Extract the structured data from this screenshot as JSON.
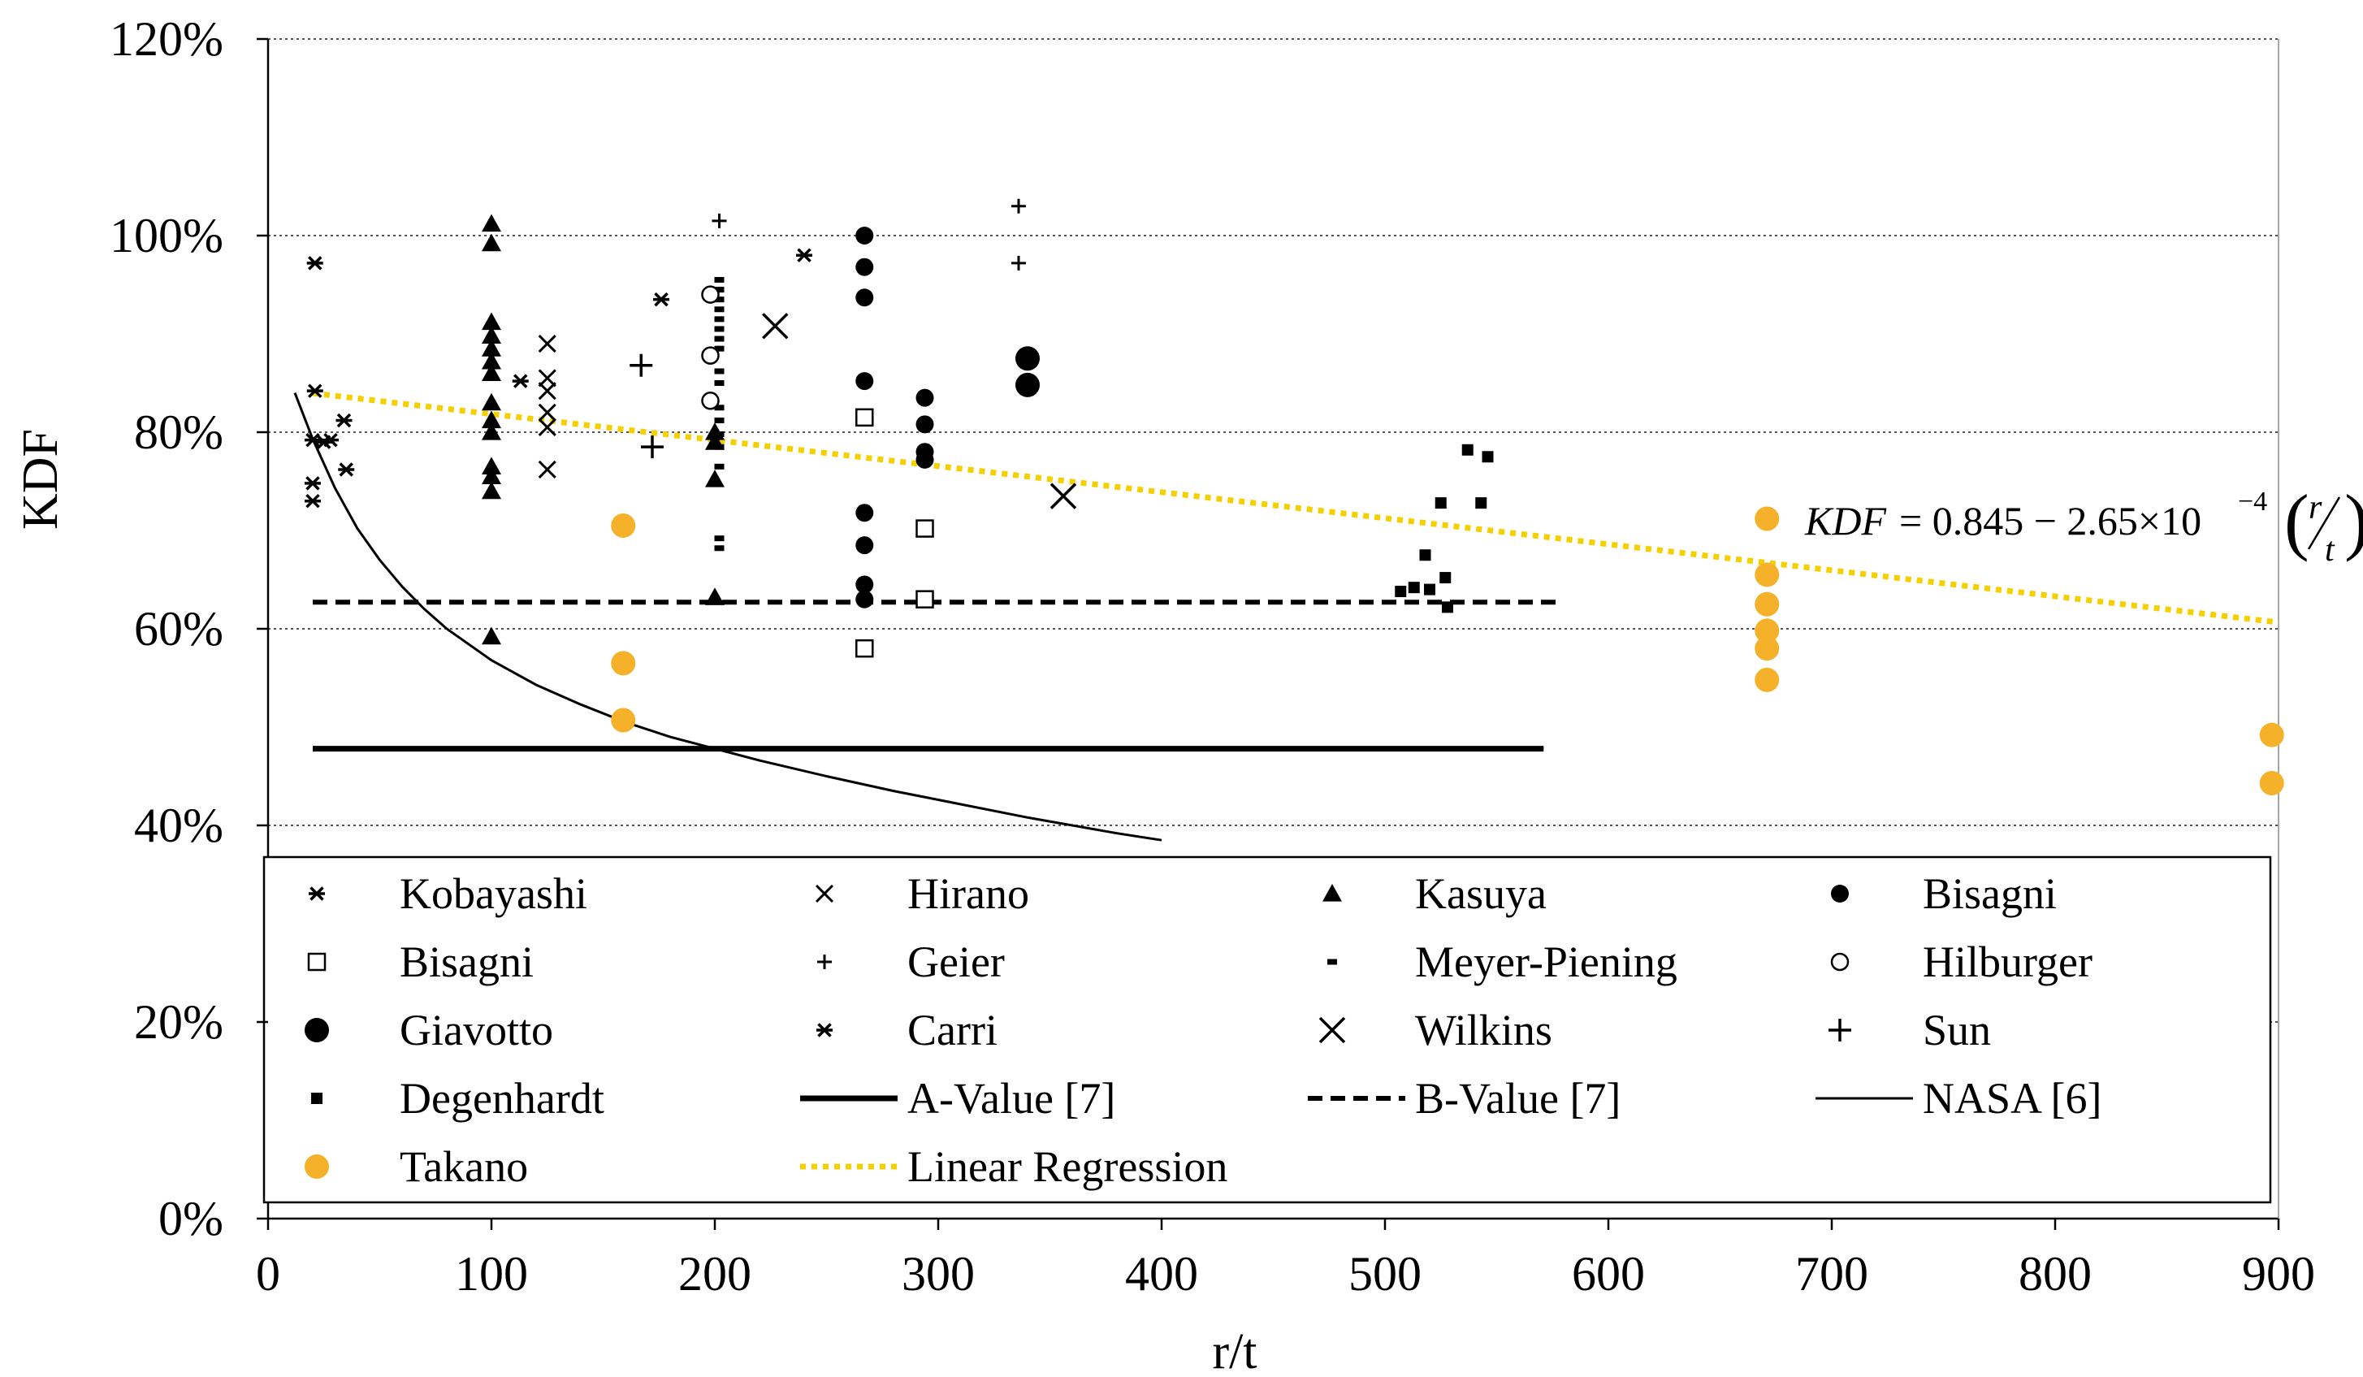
{
  "chart_data": {
    "type": "scatter",
    "xlabel": "r/t",
    "ylabel": "KDF",
    "xlim": [
      0,
      900
    ],
    "ylim": [
      0,
      1.2
    ],
    "x_ticks": [
      "0",
      "100",
      "200",
      "300",
      "400",
      "500",
      "600",
      "700",
      "800",
      "900"
    ],
    "y_ticks": [
      "0%",
      "20%",
      "40%",
      "60%",
      "80%",
      "100%",
      "120%"
    ],
    "grid": "horizontal dotted",
    "equation_annotation": {
      "lhs": "KDF",
      "rhs": "= 0.845 − 2.65×10",
      "exponent": "−4",
      "frac_num": "r",
      "frac_den": "t"
    },
    "colors": {
      "takano": "#F5B129",
      "regression": "#F5D000",
      "ink": "#000000"
    },
    "series": [
      {
        "name": "Kobayashi",
        "marker": "asterisk",
        "points": [
          [
            21,
            0.972
          ],
          [
            21,
            0.842
          ],
          [
            20,
            0.792
          ],
          [
            20,
            0.748
          ],
          [
            20,
            0.73
          ],
          [
            25,
            0.79
          ],
          [
            28,
            0.792
          ],
          [
            34,
            0.812
          ],
          [
            35,
            0.762
          ]
        ]
      },
      {
        "name": "Hirano",
        "marker": "x-small",
        "points": [
          [
            125,
            0.89
          ],
          [
            125,
            0.855
          ],
          [
            125,
            0.842
          ],
          [
            125,
            0.82
          ],
          [
            125,
            0.805
          ],
          [
            125,
            0.762
          ]
        ]
      },
      {
        "name": "Kasuya",
        "marker": "triangle",
        "points": [
          [
            100,
            1.012
          ],
          [
            100,
            0.992
          ],
          [
            100,
            0.912
          ],
          [
            100,
            0.898
          ],
          [
            100,
            0.885
          ],
          [
            100,
            0.872
          ],
          [
            100,
            0.86
          ],
          [
            100,
            0.83
          ],
          [
            100,
            0.812
          ],
          [
            100,
            0.8
          ],
          [
            100,
            0.765
          ],
          [
            100,
            0.755
          ],
          [
            100,
            0.74
          ],
          [
            100,
            0.592
          ],
          [
            200,
            0.8
          ],
          [
            200,
            0.79
          ],
          [
            200,
            0.752
          ],
          [
            200,
            0.632
          ]
        ]
      },
      {
        "name": "Bisagni",
        "marker": "circle",
        "points": [
          [
            267,
            1.0
          ],
          [
            267,
            0.968
          ],
          [
            267,
            0.937
          ],
          [
            267,
            0.852
          ],
          [
            267,
            0.718
          ],
          [
            267,
            0.685
          ],
          [
            267,
            0.645
          ],
          [
            267,
            0.63
          ],
          [
            294,
            0.835
          ],
          [
            294,
            0.808
          ],
          [
            294,
            0.78
          ],
          [
            294,
            0.772
          ]
        ]
      },
      {
        "name": "Bisagni",
        "marker": "square-open",
        "points": [
          [
            267,
            0.815
          ],
          [
            267,
            0.58
          ],
          [
            294,
            0.702
          ],
          [
            294,
            0.63
          ]
        ]
      },
      {
        "name": "Geier",
        "marker": "plus-small",
        "points": [
          [
            202,
            1.015
          ],
          [
            336,
            1.03
          ],
          [
            336,
            0.972
          ]
        ]
      },
      {
        "name": "Meyer-Piening",
        "marker": "dash",
        "points": [
          [
            202,
            0.955
          ],
          [
            202,
            0.945
          ],
          [
            202,
            0.935
          ],
          [
            202,
            0.925
          ],
          [
            202,
            0.915
          ],
          [
            202,
            0.905
          ],
          [
            202,
            0.895
          ],
          [
            202,
            0.885
          ],
          [
            202,
            0.862
          ],
          [
            202,
            0.85
          ],
          [
            202,
            0.825
          ],
          [
            202,
            0.812
          ],
          [
            202,
            0.798
          ],
          [
            202,
            0.785
          ],
          [
            202,
            0.765
          ],
          [
            202,
            0.692
          ],
          [
            202,
            0.682
          ]
        ]
      },
      {
        "name": "Hilburger",
        "marker": "circle-open",
        "points": [
          [
            198,
            0.94
          ],
          [
            198,
            0.878
          ],
          [
            198,
            0.832
          ]
        ]
      },
      {
        "name": "Giavotto",
        "marker": "circle-large",
        "points": [
          [
            340,
            0.875
          ],
          [
            340,
            0.848
          ]
        ]
      },
      {
        "name": "Carri",
        "marker": "asterisk",
        "points": [
          [
            113,
            0.852
          ],
          [
            176,
            0.935
          ],
          [
            240,
            0.98
          ]
        ]
      },
      {
        "name": "Wilkins",
        "marker": "x-large",
        "points": [
          [
            227,
            0.908
          ],
          [
            356,
            0.735
          ]
        ]
      },
      {
        "name": "Sun",
        "marker": "plus-large",
        "points": [
          [
            167,
            0.868
          ],
          [
            172,
            0.785
          ]
        ]
      },
      {
        "name": "Degenhardt",
        "marker": "square-small",
        "points": [
          [
            507,
            0.638
          ],
          [
            513,
            0.642
          ],
          [
            518,
            0.675
          ],
          [
            520,
            0.64
          ],
          [
            525,
            0.728
          ],
          [
            527,
            0.652
          ],
          [
            528,
            0.622
          ],
          [
            537,
            0.782
          ],
          [
            543,
            0.728
          ],
          [
            546,
            0.775
          ]
        ]
      },
      {
        "name": "Takano",
        "marker": "circle-orange",
        "points": [
          [
            159,
            0.705
          ],
          [
            159,
            0.565
          ],
          [
            159,
            0.507
          ],
          [
            671,
            0.712
          ],
          [
            671,
            0.655
          ],
          [
            671,
            0.625
          ],
          [
            671,
            0.598
          ],
          [
            671,
            0.58
          ],
          [
            671,
            0.548
          ],
          [
            897,
            0.492
          ],
          [
            897,
            0.443
          ]
        ]
      }
    ],
    "lines": [
      {
        "name": "A-Value [7]",
        "style": "solid-thick",
        "x": [
          20,
          571
        ],
        "y": [
          0.478,
          0.478
        ]
      },
      {
        "name": "B-Value [7]",
        "style": "dashed",
        "x": [
          20,
          578
        ],
        "y": [
          0.627,
          0.627
        ]
      },
      {
        "name": "NASA [6]",
        "style": "solid-thin",
        "x": [
          12,
          20,
          30,
          40,
          50,
          60,
          70,
          80,
          100,
          120,
          140,
          160,
          180,
          200,
          220,
          250,
          280,
          300,
          340,
          380,
          400
        ],
        "y": [
          0.84,
          0.793,
          0.743,
          0.702,
          0.67,
          0.643,
          0.62,
          0.6,
          0.568,
          0.543,
          0.523,
          0.505,
          0.49,
          0.478,
          0.466,
          0.45,
          0.435,
          0.426,
          0.408,
          0.392,
          0.385
        ]
      },
      {
        "name": "Linear Regression",
        "style": "dotted-yellow",
        "x": [
          20,
          900
        ],
        "y": [
          0.8397,
          0.6065
        ]
      }
    ],
    "legend_placement": "inside-bottom",
    "legend": [
      {
        "label": "Kobayashi",
        "marker": "asterisk"
      },
      {
        "label": "Hirano",
        "marker": "x-small"
      },
      {
        "label": "Kasuya",
        "marker": "triangle"
      },
      {
        "label": "Bisagni",
        "marker": "circle"
      },
      {
        "label": "Bisagni",
        "marker": "square-open"
      },
      {
        "label": "Geier",
        "marker": "plus-small"
      },
      {
        "label": "Meyer-Piening",
        "marker": "dash"
      },
      {
        "label": "Hilburger",
        "marker": "circle-open"
      },
      {
        "label": "Giavotto",
        "marker": "circle-large"
      },
      {
        "label": "Carri",
        "marker": "asterisk"
      },
      {
        "label": "Wilkins",
        "marker": "x-large"
      },
      {
        "label": "Sun",
        "marker": "plus-large"
      },
      {
        "label": "Degenhardt",
        "marker": "square-small"
      },
      {
        "label": "A-Value [7]",
        "marker": "line-solid-thick"
      },
      {
        "label": "B-Value [7]",
        "marker": "line-dashed"
      },
      {
        "label": "NASA [6]",
        "marker": "line-solid-thin"
      },
      {
        "label": "Takano",
        "marker": "circle-orange"
      },
      {
        "label": "Linear Regression",
        "marker": "line-dotted-yellow"
      }
    ]
  }
}
